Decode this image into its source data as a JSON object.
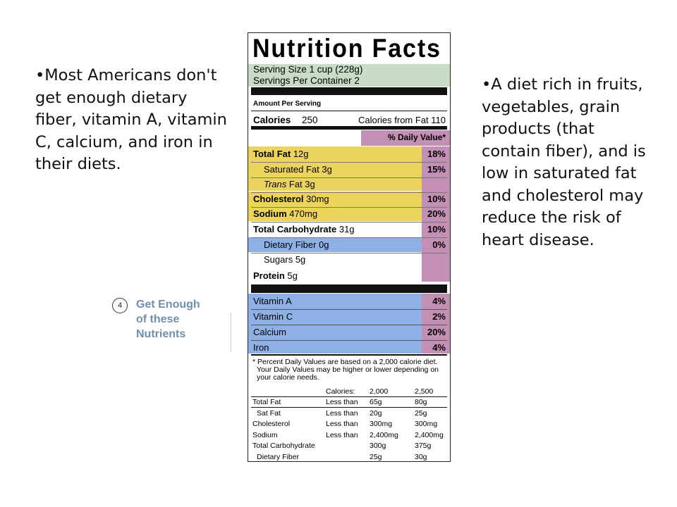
{
  "slide": {
    "left_bullet": "•Most Americans don't get enough dietary fiber, vitamin A, vitamin C, calcium, and iron in their diets.",
    "right_bullet": "•A diet rich in fruits, vegetables, grain products (that contain fiber), and is low in saturated fat and cholesterol may reduce the risk of heart disease."
  },
  "callout": {
    "number": "4",
    "line1": "Get Enough",
    "line2": "of these",
    "line3": "Nutrients"
  },
  "label": {
    "title": "Nutrition Facts",
    "serving_size": "Serving Size 1 cup (228g)",
    "servings_per_container": "Servings Per Container  2",
    "amount_per_serving": "Amount Per Serving",
    "calories_label": "Calories",
    "calories_value": "250",
    "calories_from_fat": "Calories from Fat 110",
    "daily_value_header": "% Daily Value*",
    "nutrients": [
      {
        "name": "Total Fat",
        "amount": "12g",
        "pct": "18%"
      },
      {
        "name": "Saturated Fat",
        "amount": "3g",
        "pct": "15%"
      },
      {
        "name": "Trans",
        "amount": "Fat 3g",
        "pct": ""
      },
      {
        "name": "Cholesterol",
        "amount": "30mg",
        "pct": "10%"
      },
      {
        "name": "Sodium",
        "amount": "470mg",
        "pct": "20%"
      },
      {
        "name": "Total Carbohydrate",
        "amount": "31g",
        "pct": "10%"
      },
      {
        "name": "Dietary Fiber",
        "amount": "0g",
        "pct": "0%"
      },
      {
        "name": "Sugars",
        "amount": "5g",
        "pct": ""
      },
      {
        "name": "Protein",
        "amount": "5g",
        "pct": ""
      }
    ],
    "vitamins": [
      {
        "name": "Vitamin A",
        "pct": "4%"
      },
      {
        "name": "Vitamin C",
        "pct": "2%"
      },
      {
        "name": "Calcium",
        "pct": "20%"
      },
      {
        "name": "Iron",
        "pct": "4%"
      }
    ],
    "footnote": [
      "* Percent Daily Values are based on a 2,000 calorie diet.",
      "Your Daily Values may be higher or lower depending on",
      "your calorie needs."
    ],
    "table_header": {
      "label": "Calories:",
      "col1": "2,000",
      "col2": "2,500"
    },
    "table_rows": [
      {
        "name": "Total Fat",
        "qual": "Less than",
        "v1": "65g",
        "v2": "80g"
      },
      {
        "name": "Sat Fat",
        "qual": "Less than",
        "v1": "20g",
        "v2": "25g"
      },
      {
        "name": "Cholesterol",
        "qual": "Less than",
        "v1": "300mg",
        "v2": "300mg"
      },
      {
        "name": "Sodium",
        "qual": "Less than",
        "v1": "2,400mg",
        "v2": "2,400mg"
      },
      {
        "name": "Total Carbohydrate",
        "qual": "",
        "v1": "300g",
        "v2": "375g"
      },
      {
        "name": "Dietary Fiber",
        "qual": "",
        "v1": "25g",
        "v2": "30g"
      }
    ]
  },
  "colors": {
    "serving_green": "#c8dcc8",
    "fat_yellow": "#ecd45a",
    "limit_purple": "#c48fb4",
    "nutrient_blue": "#8eb0e4",
    "white": "#ffffff",
    "callout_blue": "#6f8fb0"
  }
}
